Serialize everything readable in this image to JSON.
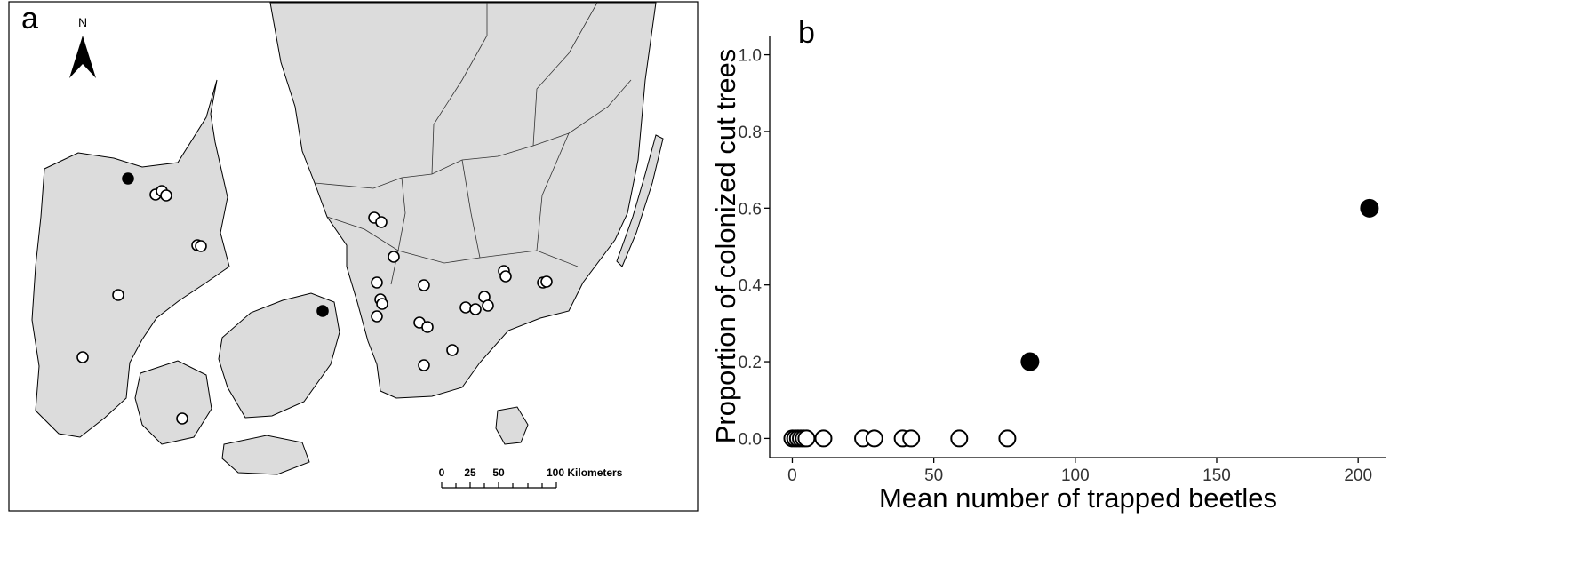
{
  "panel_a": {
    "label": "a",
    "north_label": "N",
    "scale_bar": {
      "ticks": [
        "0",
        "25",
        "50",
        "100 Kilometers"
      ]
    },
    "sites": [
      {
        "colonized": true
      },
      {
        "colonized": false
      },
      {
        "colonized": false
      },
      {
        "colonized": false
      },
      {
        "colonized": false
      },
      {
        "colonized": false
      },
      {
        "colonized": false
      },
      {
        "colonized": false
      },
      {
        "colonized": true
      },
      {
        "colonized": false
      },
      {
        "colonized": false
      },
      {
        "colonized": false
      },
      {
        "colonized": false
      },
      {
        "colonized": false
      },
      {
        "colonized": false
      },
      {
        "colonized": false
      },
      {
        "colonized": false
      },
      {
        "colonized": false
      },
      {
        "colonized": false
      },
      {
        "colonized": false
      },
      {
        "colonized": false
      },
      {
        "colonized": false
      },
      {
        "colonized": false
      },
      {
        "colonized": false
      },
      {
        "colonized": false
      },
      {
        "colonized": false
      },
      {
        "colonized": false
      },
      {
        "colonized": false
      },
      {
        "colonized": false
      },
      {
        "colonized": false
      }
    ],
    "colors": {
      "land": "#dcdcdc",
      "border": "#000000",
      "filled": "#000000",
      "open": "#ffffff"
    }
  },
  "chart_data": {
    "type": "scatter",
    "label": "b",
    "xlabel": "Mean number of trapped beetles",
    "ylabel": "Proportion of colonized cut trees",
    "xlim": [
      -8,
      210
    ],
    "ylim": [
      -0.05,
      1.05
    ],
    "xticks": [
      0,
      50,
      100,
      150,
      200
    ],
    "yticks": [
      0.0,
      0.2,
      0.4,
      0.6,
      0.8,
      1.0
    ],
    "xtick_labels": [
      "0",
      "50",
      "100",
      "150",
      "200"
    ],
    "ytick_labels": [
      "0.0",
      "0.2",
      "0.4",
      "0.6",
      "0.8",
      "1.0"
    ],
    "grid": false,
    "series": [
      {
        "marker": "open-circle",
        "x": [
          0,
          1,
          2,
          3,
          4,
          5,
          11,
          25,
          29,
          39,
          42,
          59,
          76
        ],
        "y": [
          0,
          0,
          0,
          0,
          0,
          0,
          0,
          0,
          0,
          0,
          0,
          0,
          0
        ]
      },
      {
        "marker": "filled-circle",
        "x": [
          84,
          204
        ],
        "y": [
          0.2,
          0.6
        ]
      }
    ]
  }
}
